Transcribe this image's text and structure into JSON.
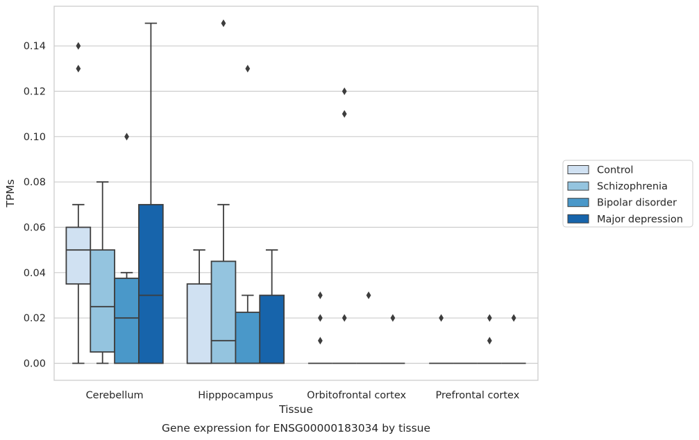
{
  "chart_data": {
    "type": "box",
    "title": "",
    "caption": "Gene expression for ENSG00000183034 by tissue",
    "xlabel": "Tissue",
    "ylabel": "TPMs",
    "ylim": [
      -0.0075,
      0.1575
    ],
    "yticks": [
      "0.00",
      "0.02",
      "0.04",
      "0.06",
      "0.08",
      "0.10",
      "0.12",
      "0.14"
    ],
    "grid": true,
    "legend_position": "right",
    "categories": [
      "Cerebellum",
      "Hipppocampus",
      "Orbitofrontal cortex",
      "Prefrontal cortex"
    ],
    "series": [
      {
        "name": "Control",
        "color": "#d0e1f2",
        "boxes": [
          {
            "whisker_low": 0.0,
            "q1": 0.035,
            "median": 0.05,
            "q3": 0.06,
            "whisker_high": 0.07,
            "outliers": [
              0.13,
              0.14
            ]
          },
          {
            "whisker_low": 0.0,
            "q1": 0.0,
            "median": 0.0,
            "q3": 0.035,
            "whisker_high": 0.05,
            "outliers": []
          },
          {
            "whisker_low": 0.0,
            "q1": 0.0,
            "median": 0.0,
            "q3": 0.0,
            "whisker_high": 0.0,
            "outliers": [
              0.01,
              0.02,
              0.03
            ]
          },
          {
            "whisker_low": 0.0,
            "q1": 0.0,
            "median": 0.0,
            "q3": 0.0,
            "whisker_high": 0.0,
            "outliers": [
              0.02
            ]
          }
        ]
      },
      {
        "name": "Schizophrenia",
        "color": "#94c4df",
        "boxes": [
          {
            "whisker_low": 0.0,
            "q1": 0.005,
            "median": 0.025,
            "q3": 0.05,
            "whisker_high": 0.08,
            "outliers": []
          },
          {
            "whisker_low": 0.0,
            "q1": 0.0,
            "median": 0.01,
            "q3": 0.045,
            "whisker_high": 0.07,
            "outliers": [
              0.15
            ]
          },
          {
            "whisker_low": 0.0,
            "q1": 0.0,
            "median": 0.0,
            "q3": 0.0,
            "whisker_high": 0.0,
            "outliers": [
              0.02,
              0.11,
              0.12
            ]
          },
          {
            "whisker_low": 0.0,
            "q1": 0.0,
            "median": 0.0,
            "q3": 0.0,
            "whisker_high": 0.0,
            "outliers": []
          }
        ]
      },
      {
        "name": "Bipolar disorder",
        "color": "#4a98c9",
        "boxes": [
          {
            "whisker_low": 0.0,
            "q1": 0.0,
            "median": 0.02,
            "q3": 0.0375,
            "whisker_high": 0.04,
            "outliers": [
              0.1
            ]
          },
          {
            "whisker_low": 0.0,
            "q1": 0.0,
            "median": 0.0,
            "q3": 0.0225,
            "whisker_high": 0.03,
            "outliers": [
              0.13
            ]
          },
          {
            "whisker_low": 0.0,
            "q1": 0.0,
            "median": 0.0,
            "q3": 0.0,
            "whisker_high": 0.0,
            "outliers": [
              0.03
            ]
          },
          {
            "whisker_low": 0.0,
            "q1": 0.0,
            "median": 0.0,
            "q3": 0.0,
            "whisker_high": 0.0,
            "outliers": [
              0.01,
              0.02
            ]
          }
        ]
      },
      {
        "name": "Major depression",
        "color": "#1764ab",
        "boxes": [
          {
            "whisker_low": 0.0,
            "q1": 0.0,
            "median": 0.03,
            "q3": 0.07,
            "whisker_high": 0.15,
            "outliers": []
          },
          {
            "whisker_low": 0.0,
            "q1": 0.0,
            "median": 0.0,
            "q3": 0.03,
            "whisker_high": 0.05,
            "outliers": []
          },
          {
            "whisker_low": 0.0,
            "q1": 0.0,
            "median": 0.0,
            "q3": 0.0,
            "whisker_high": 0.0,
            "outliers": [
              0.02
            ]
          },
          {
            "whisker_low": 0.0,
            "q1": 0.0,
            "median": 0.0,
            "q3": 0.0,
            "whisker_high": 0.0,
            "outliers": [
              0.02
            ]
          }
        ]
      }
    ]
  }
}
